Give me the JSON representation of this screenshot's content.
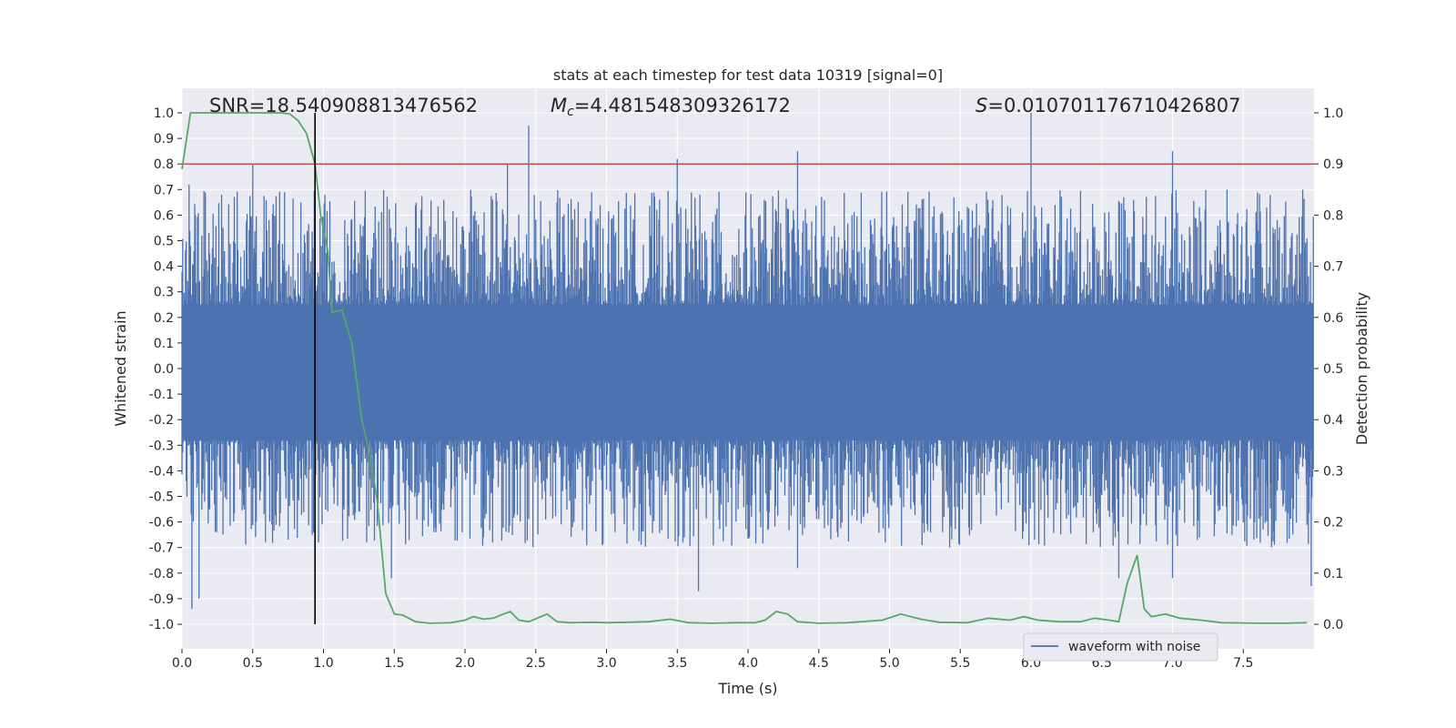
{
  "chart_data": {
    "type": "line",
    "title": "stats at each timestep for test data 10319 [signal=0]",
    "xlabel": "Time (s)",
    "ylabel_left": "Whitened strain",
    "ylabel_right": "Detection probability",
    "xlim": [
      0.0,
      8.0
    ],
    "ylim_left": [
      -1.05,
      1.05
    ],
    "ylim_right": [
      -0.05,
      1.05
    ],
    "x_ticks": [
      "0.0",
      "0.5",
      "1.0",
      "1.5",
      "2.0",
      "2.5",
      "3.0",
      "3.5",
      "4.0",
      "4.5",
      "5.0",
      "5.5",
      "6.0",
      "6.5",
      "7.0",
      "7.5"
    ],
    "y_ticks_left": [
      "1.0",
      "0.9",
      "0.8",
      "0.7",
      "0.6",
      "0.5",
      "0.4",
      "0.3",
      "0.2",
      "0.1",
      "0.0",
      "-0.1",
      "-0.2",
      "-0.3",
      "-0.4",
      "-0.5",
      "-0.6",
      "-0.7",
      "-0.8",
      "-0.9",
      "-1.0"
    ],
    "y_ticks_right": [
      "1.0",
      "0.9",
      "0.8",
      "0.7",
      "0.6",
      "0.5",
      "0.4",
      "0.3",
      "0.2",
      "0.1",
      "0.0"
    ],
    "grid": true,
    "legend_position": "lower-right",
    "annotations": {
      "snr": "SNR=18.540908813476562",
      "mc_symbol": "M",
      "mc_sub": "c",
      "mc_value": "=4.481548309326172",
      "s_symbol": "S",
      "s_value": "=0.010701176710426807"
    },
    "threshold": {
      "value_right_axis": 0.9,
      "color": "#c44e52"
    },
    "marker_line": {
      "x": 0.94,
      "color": "#000000"
    },
    "series": [
      {
        "name": "waveform with noise",
        "axis": "left",
        "color": "#4c72b0",
        "description_only": false,
        "noise_amplitude_range": [
          -0.95,
          1.0
        ],
        "peaks_up": [
          [
            0.05,
            0.72
          ],
          [
            0.5,
            0.8
          ],
          [
            2.3,
            0.8
          ],
          [
            2.45,
            0.95
          ],
          [
            3.5,
            0.82
          ],
          [
            4.35,
            0.85
          ],
          [
            6.0,
            1.0
          ],
          [
            7.0,
            0.85
          ]
        ],
        "peaks_down": [
          [
            0.07,
            -0.94
          ],
          [
            0.12,
            -0.9
          ],
          [
            1.48,
            -0.82
          ],
          [
            3.65,
            -0.87
          ],
          [
            4.35,
            -0.78
          ],
          [
            6.62,
            -0.82
          ],
          [
            7.0,
            -0.82
          ],
          [
            7.98,
            -0.85
          ]
        ]
      },
      {
        "name": "",
        "axis": "right",
        "color": "#55a868",
        "points": [
          [
            0.0,
            0.89
          ],
          [
            0.06,
            1.0
          ],
          [
            0.12,
            1.0
          ],
          [
            0.2,
            1.0
          ],
          [
            0.3,
            1.0
          ],
          [
            0.4,
            1.0
          ],
          [
            0.5,
            1.0
          ],
          [
            0.6,
            1.0
          ],
          [
            0.7,
            1.0
          ],
          [
            0.76,
            0.998
          ],
          [
            0.82,
            0.985
          ],
          [
            0.88,
            0.96
          ],
          [
            0.94,
            0.9
          ],
          [
            0.98,
            0.8
          ],
          [
            1.03,
            0.73
          ],
          [
            1.06,
            0.61
          ],
          [
            1.13,
            0.615
          ],
          [
            1.2,
            0.55
          ],
          [
            1.27,
            0.4
          ],
          [
            1.33,
            0.33
          ],
          [
            1.38,
            0.24
          ],
          [
            1.44,
            0.06
          ],
          [
            1.5,
            0.02
          ],
          [
            1.56,
            0.018
          ],
          [
            1.65,
            0.005
          ],
          [
            1.75,
            0.002
          ],
          [
            1.9,
            0.003
          ],
          [
            2.0,
            0.008
          ],
          [
            2.06,
            0.015
          ],
          [
            2.13,
            0.01
          ],
          [
            2.2,
            0.012
          ],
          [
            2.27,
            0.02
          ],
          [
            2.32,
            0.025
          ],
          [
            2.38,
            0.008
          ],
          [
            2.45,
            0.005
          ],
          [
            2.58,
            0.02
          ],
          [
            2.65,
            0.005
          ],
          [
            2.75,
            0.003
          ],
          [
            2.9,
            0.004
          ],
          [
            3.0,
            0.003
          ],
          [
            3.15,
            0.004
          ],
          [
            3.3,
            0.005
          ],
          [
            3.45,
            0.01
          ],
          [
            3.58,
            0.003
          ],
          [
            3.75,
            0.002
          ],
          [
            3.9,
            0.003
          ],
          [
            4.05,
            0.003
          ],
          [
            4.12,
            0.008
          ],
          [
            4.2,
            0.025
          ],
          [
            4.28,
            0.02
          ],
          [
            4.35,
            0.005
          ],
          [
            4.5,
            0.002
          ],
          [
            4.7,
            0.003
          ],
          [
            4.95,
            0.008
          ],
          [
            5.08,
            0.02
          ],
          [
            5.22,
            0.01
          ],
          [
            5.35,
            0.004
          ],
          [
            5.55,
            0.003
          ],
          [
            5.7,
            0.012
          ],
          [
            5.85,
            0.008
          ],
          [
            5.95,
            0.015
          ],
          [
            6.05,
            0.008
          ],
          [
            6.2,
            0.005
          ],
          [
            6.35,
            0.005
          ],
          [
            6.45,
            0.012
          ],
          [
            6.55,
            0.008
          ],
          [
            6.62,
            0.005
          ],
          [
            6.68,
            0.08
          ],
          [
            6.75,
            0.135
          ],
          [
            6.8,
            0.03
          ],
          [
            6.85,
            0.015
          ],
          [
            6.95,
            0.02
          ],
          [
            7.05,
            0.012
          ],
          [
            7.2,
            0.008
          ],
          [
            7.35,
            0.003
          ],
          [
            7.6,
            0.002
          ],
          [
            7.8,
            0.002
          ],
          [
            7.95,
            0.003
          ]
        ]
      }
    ]
  }
}
